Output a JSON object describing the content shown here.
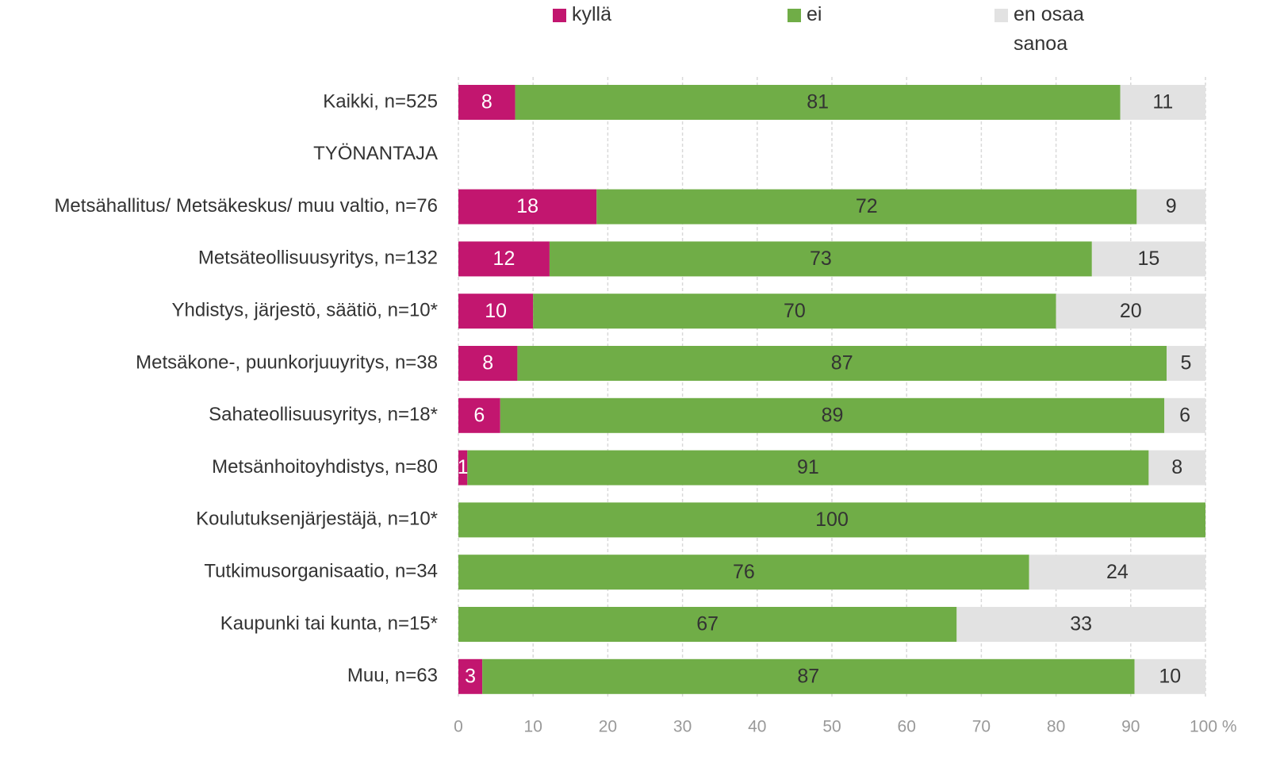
{
  "chart_data": {
    "type": "stacked-barh",
    "categories": [
      "Kaikki, n=525",
      "TYÖNANTAJA",
      "Metsähallitus/ Metsäkeskus/ muu valtio, n=76",
      "Metsäteollisuusyritys, n=132",
      "Yhdistys, järjestö, säätiö, n=10*",
      "Metsäkone-, puunkorjuuyritys, n=38",
      "Sahateollisuusyritys, n=18*",
      "Metsänhoitoyhdistys, n=80",
      "Koulutuksenjärjestäjä, n=10*",
      "Tutkimusorganisaatio, n=34",
      "Kaupunki tai kunta, n=15*",
      "Muu, n=63"
    ],
    "series": [
      {
        "name": "kyllä",
        "color": "#c2166f",
        "label_color": "#ffffff",
        "values": [
          7.6,
          null,
          18.5,
          12.2,
          10,
          7.9,
          5.6,
          1.2,
          0,
          0,
          0,
          3.2
        ],
        "value_labels": [
          "8",
          null,
          "18",
          "12",
          "10",
          "8",
          "6",
          "1",
          null,
          null,
          null,
          "3"
        ]
      },
      {
        "name": "ei",
        "color": "#70ad47",
        "label_color": "#333333",
        "values": [
          81.0,
          null,
          72.3,
          72.6,
          70,
          86.9,
          88.9,
          91.2,
          100,
          76.4,
          66.7,
          87.3
        ],
        "value_labels": [
          "81",
          null,
          "72",
          "73",
          "70",
          "87",
          "89",
          "91",
          "100",
          "76",
          "67",
          "87"
        ]
      },
      {
        "name": "en osaa sanoa",
        "color": "#e2e2e2",
        "label_color": "#333333",
        "values": [
          11.4,
          null,
          9.2,
          15.2,
          20,
          5.2,
          5.5,
          7.6,
          0,
          23.6,
          33.3,
          9.5
        ],
        "value_labels": [
          "11",
          null,
          "9",
          "15",
          "20",
          "5",
          "6",
          "8",
          null,
          "24",
          "33",
          "10"
        ]
      }
    ],
    "xlim": [
      0,
      100
    ],
    "xticks": [
      0,
      10,
      20,
      30,
      40,
      50,
      60,
      70,
      80,
      90,
      {
        "value": 100,
        "label": "100 %"
      }
    ],
    "grid": true
  }
}
